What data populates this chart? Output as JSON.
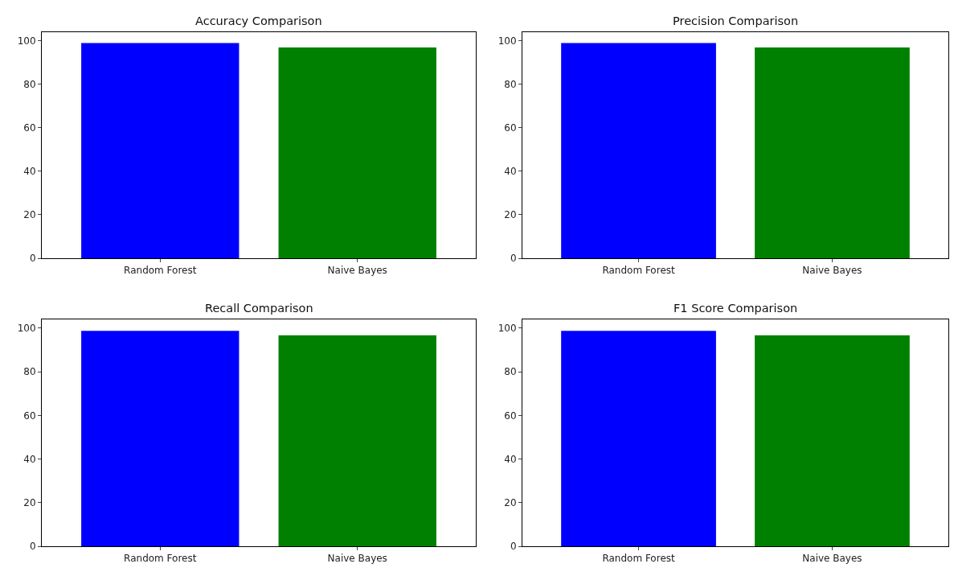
{
  "chart_data": [
    {
      "type": "bar",
      "title": "Accuracy Comparison",
      "categories": [
        "Random Forest",
        "Naive Bayes"
      ],
      "values": [
        99,
        97
      ],
      "colors": [
        "#0000ff",
        "#008000"
      ],
      "ylim": [
        0,
        104
      ],
      "yticks": [
        0,
        20,
        40,
        60,
        80,
        100
      ]
    },
    {
      "type": "bar",
      "title": "Precision Comparison",
      "categories": [
        "Random Forest",
        "Naive Bayes"
      ],
      "values": [
        99,
        97
      ],
      "colors": [
        "#0000ff",
        "#008000"
      ],
      "ylim": [
        0,
        104
      ],
      "yticks": [
        0,
        20,
        40,
        60,
        80,
        100
      ]
    },
    {
      "type": "bar",
      "title": "Recall Comparison",
      "categories": [
        "Random Forest",
        "Naive Bayes"
      ],
      "values": [
        98.7,
        96.7
      ],
      "colors": [
        "#0000ff",
        "#008000"
      ],
      "ylim": [
        0,
        104
      ],
      "yticks": [
        0,
        20,
        40,
        60,
        80,
        100
      ]
    },
    {
      "type": "bar",
      "title": "F1 Score Comparison",
      "categories": [
        "Random Forest",
        "Naive Bayes"
      ],
      "values": [
        98.7,
        96.7
      ],
      "colors": [
        "#0000ff",
        "#008000"
      ],
      "ylim": [
        0,
        104
      ],
      "yticks": [
        0,
        20,
        40,
        60,
        80,
        100
      ]
    }
  ]
}
